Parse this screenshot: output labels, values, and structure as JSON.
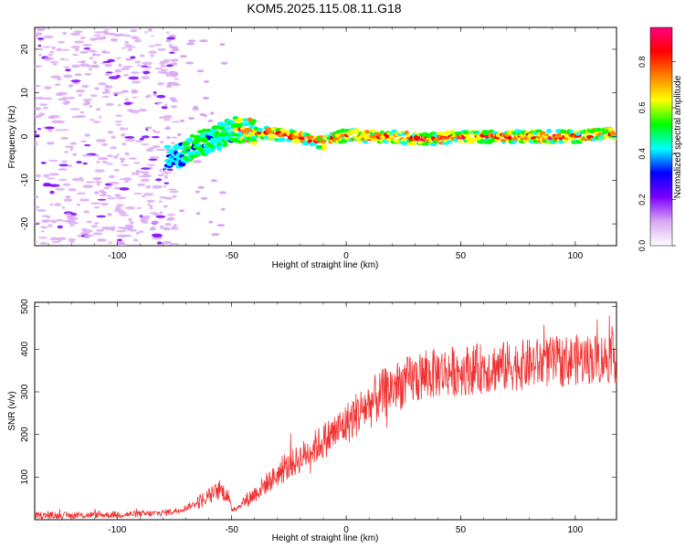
{
  "title": "KOM5.2025.115.08.11.G18",
  "chart_data": [
    {
      "type": "heatmap",
      "title": "KOM5.2025.115.08.11.G18",
      "xlabel": "Height of straight line (km)",
      "ylabel": "Frequency (Hz)",
      "xlim": [
        -136,
        118
      ],
      "ylim": [
        -25,
        25
      ],
      "xticks": [
        -100,
        -50,
        0,
        50,
        100
      ],
      "yticks": [
        -20,
        -10,
        0,
        10,
        20
      ],
      "colorbar": {
        "label": "Normalized spectral amplitude",
        "range": [
          0,
          0.95
        ],
        "ticks": [
          0.0,
          0.2,
          0.4,
          0.6,
          0.8
        ],
        "colors": [
          "#ffffff",
          "#d9a6f2",
          "#7a00ff",
          "#0000ff",
          "#00ffff",
          "#00ff00",
          "#ffff00",
          "#ff8000",
          "#ff0000",
          "#ff0080"
        ]
      },
      "ridge": [
        {
          "x": -75,
          "f": -5.0
        },
        {
          "x": -70,
          "f": -3.5
        },
        {
          "x": -65,
          "f": -1.5
        },
        {
          "x": -60,
          "f": -1.0
        },
        {
          "x": -55,
          "f": 0.0
        },
        {
          "x": -50,
          "f": 1.5
        },
        {
          "x": -45,
          "f": 1.5
        },
        {
          "x": -40,
          "f": 1.0
        },
        {
          "x": -30,
          "f": 0.5
        },
        {
          "x": -20,
          "f": 0.0
        },
        {
          "x": -10,
          "f": -1.5
        },
        {
          "x": 0,
          "f": 0.5
        },
        {
          "x": 10,
          "f": 0.0
        },
        {
          "x": 20,
          "f": 0.0
        },
        {
          "x": 30,
          "f": -0.5
        },
        {
          "x": 40,
          "f": -0.5
        },
        {
          "x": 50,
          "f": 0.0
        },
        {
          "x": 60,
          "f": 0.0
        },
        {
          "x": 70,
          "f": 0.0
        },
        {
          "x": 80,
          "f": 0.0
        },
        {
          "x": 90,
          "f": 0.0
        },
        {
          "x": 100,
          "f": 0.0
        },
        {
          "x": 110,
          "f": 0.5
        },
        {
          "x": 118,
          "f": 0.5
        }
      ]
    },
    {
      "type": "line",
      "xlabel": "Height of straight line (km)",
      "ylabel": "SNR (v/v)",
      "xlim": [
        -136,
        118
      ],
      "ylim": [
        0,
        510
      ],
      "xticks": [
        -100,
        -50,
        0,
        50,
        100
      ],
      "yticks": [
        100,
        200,
        300,
        400,
        500
      ],
      "color": "#f03232",
      "series": [
        {
          "x": [
            -136,
            -120,
            -100,
            -85,
            -80,
            -75,
            -70,
            -65,
            -60,
            -55,
            -52,
            -50,
            -47,
            -45,
            -40,
            -35,
            -30,
            -25,
            -20,
            -15,
            -10,
            -5,
            0,
            5,
            10,
            15,
            20,
            25,
            30,
            40,
            50,
            60,
            70,
            80,
            90,
            100,
            110,
            118
          ],
          "values": [
            10,
            10,
            12,
            14,
            16,
            20,
            28,
            40,
            55,
            70,
            60,
            25,
            30,
            40,
            60,
            85,
            105,
            125,
            145,
            165,
            185,
            205,
            225,
            250,
            270,
            290,
            310,
            320,
            330,
            345,
            350,
            355,
            360,
            365,
            370,
            375,
            378,
            380
          ]
        }
      ]
    }
  ]
}
